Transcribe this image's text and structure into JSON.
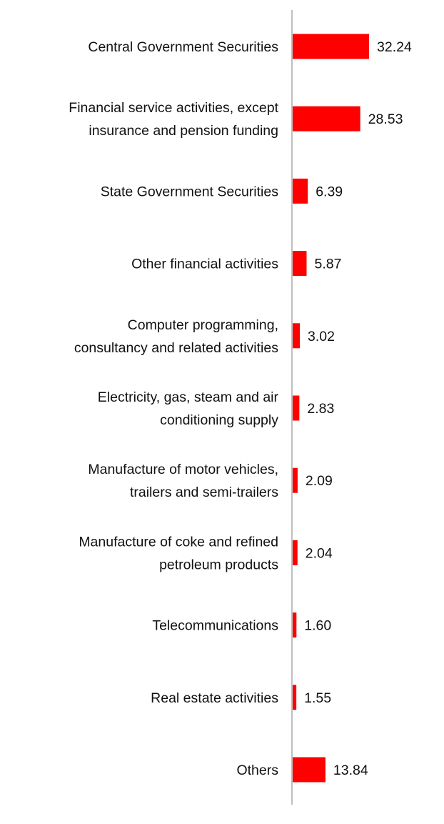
{
  "chart_data": {
    "type": "bar",
    "orientation": "horizontal",
    "categories": [
      "Central Government Securities",
      "Financial service activities, except insurance and pension funding",
      "State Government Securities",
      "Other financial activities",
      "Computer programming, consultancy and related activities",
      "Electricity, gas, steam and air conditioning supply",
      "Manufacture of motor vehicles, trailers and semi-trailers",
      "Manufacture of coke and refined petroleum products",
      "Telecommunications",
      "Real estate activities",
      "Others"
    ],
    "category_lines": [
      [
        "Central Government Securities"
      ],
      [
        "Financial service activities, except",
        "insurance and pension funding"
      ],
      [
        "State Government Securities"
      ],
      [
        "Other financial activities"
      ],
      [
        "Computer programming,",
        "consultancy and related activities"
      ],
      [
        "Electricity, gas, steam and air",
        "conditioning supply"
      ],
      [
        "Manufacture of motor vehicles,",
        "trailers and semi-trailers"
      ],
      [
        "Manufacture of coke and refined",
        "petroleum products"
      ],
      [
        "Telecommunications"
      ],
      [
        "Real estate activities"
      ],
      [
        "Others"
      ]
    ],
    "values": [
      32.24,
      28.53,
      6.39,
      5.87,
      3.02,
      2.83,
      2.09,
      2.04,
      1.6,
      1.55,
      13.84
    ],
    "value_labels": [
      "32.24",
      "28.53",
      "6.39",
      "5.87",
      "3.02",
      "2.83",
      "2.09",
      "2.04",
      "1.60",
      "1.55",
      "13.84"
    ],
    "xlim": [
      0,
      32.24
    ],
    "grid": false,
    "legend": "none",
    "bar_color": "#ff0000",
    "axis_color": "#bfbfbf"
  }
}
